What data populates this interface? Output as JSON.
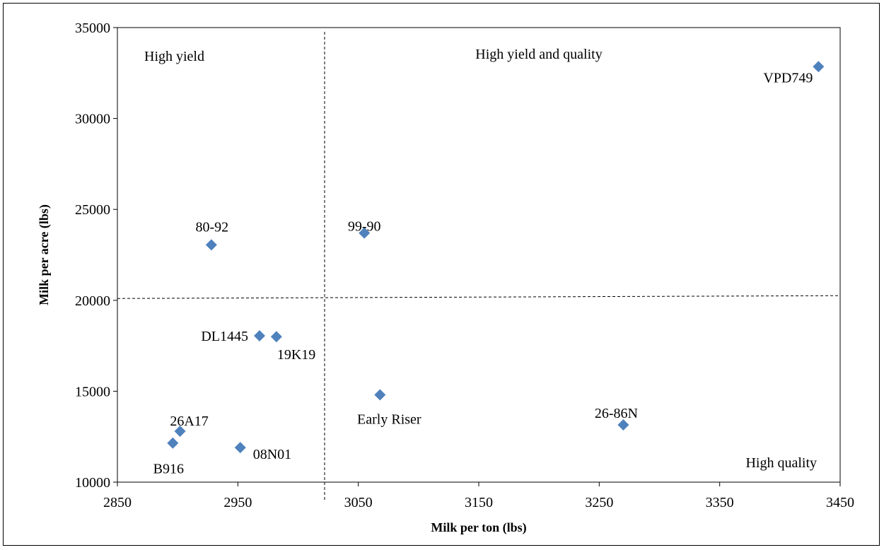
{
  "chart_data": {
    "type": "scatter",
    "title": "",
    "xlabel": "Milk per ton (lbs)",
    "ylabel": "Milk per acre (lbs)",
    "xlim": [
      2850,
      3450
    ],
    "ylim": [
      10000,
      35000
    ],
    "xticks": [
      2850,
      2950,
      3050,
      3150,
      3250,
      3350,
      3450
    ],
    "yticks": [
      10000,
      15000,
      20000,
      25000,
      30000,
      35000
    ],
    "grid": false,
    "marker": "diamond",
    "marker_color": "#4F81BD",
    "reference_lines": {
      "x": 3022,
      "y": 20100
    },
    "quadrant_labels": {
      "top_left": "High yield",
      "top_right": "High yield and quality",
      "bottom_right": "High quality"
    },
    "points": [
      {
        "label": "VPD749",
        "x": 3432,
        "y": 32850
      },
      {
        "label": "80-92",
        "x": 2928,
        "y": 23050
      },
      {
        "label": "99-90",
        "x": 3055,
        "y": 23700
      },
      {
        "label": "DL1445",
        "x": 2968,
        "y": 18050
      },
      {
        "label": "19K19",
        "x": 2982,
        "y": 18000
      },
      {
        "label": "Early Riser",
        "x": 3068,
        "y": 14800
      },
      {
        "label": "26-86N",
        "x": 3270,
        "y": 13150
      },
      {
        "label": "26A17",
        "x": 2902,
        "y": 12800
      },
      {
        "label": "B916",
        "x": 2896,
        "y": 12150
      },
      {
        "label": "08N01",
        "x": 2952,
        "y": 11900
      }
    ]
  }
}
